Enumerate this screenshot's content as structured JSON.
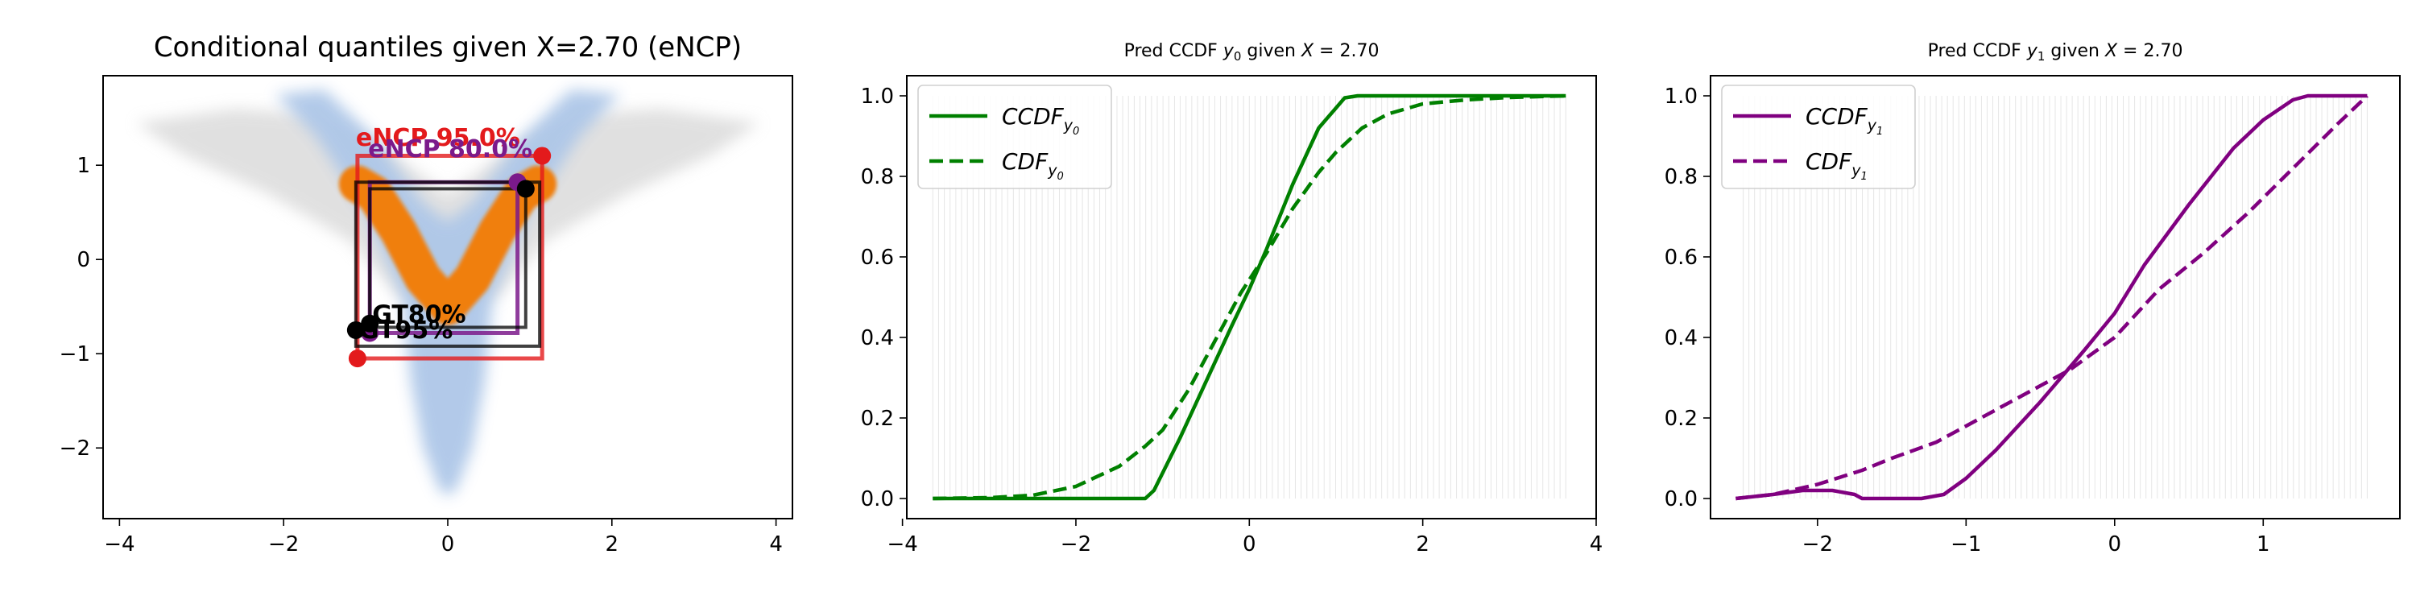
{
  "chart_data": [
    {
      "type": "scatter",
      "title": "Conditional quantiles given X=2.70 (eNCP)",
      "xlabel": "",
      "ylabel": "",
      "xlim": [
        -4.2,
        4.2
      ],
      "ylim": [
        -2.75,
        1.95
      ],
      "xticks": [
        -4,
        -2,
        0,
        2,
        4
      ],
      "yticks": [
        -2,
        -1,
        0,
        1
      ],
      "grid": false,
      "colors": {
        "cloud_grey": "#c8c8c8",
        "cloud_blue": "#aec7e8",
        "conditional": "#f07f0e",
        "encp95": "#e31a1c",
        "encp80": "#7b1a8b",
        "gt": "#000000"
      },
      "conditional_sample_curve": {
        "x": [
          -1.1,
          -0.9,
          -0.6,
          -0.3,
          0.0,
          0.3,
          0.6,
          0.9,
          1.1
        ],
        "y": [
          0.8,
          0.7,
          0.3,
          -0.2,
          -0.5,
          -0.2,
          0.3,
          0.7,
          0.8
        ]
      },
      "regions": [
        {
          "label": "eNCP 95.0%",
          "x": [
            -1.1,
            1.15
          ],
          "y": [
            -1.05,
            1.1
          ],
          "corners": [
            [
              -1.1,
              -1.05
            ],
            [
              1.15,
              1.1
            ]
          ]
        },
        {
          "label": "eNCP 80.0%",
          "x": [
            -0.95,
            0.85
          ],
          "y": [
            -0.78,
            0.82
          ],
          "corners": [
            [
              -0.95,
              -0.78
            ],
            [
              0.85,
              0.82
            ]
          ]
        },
        {
          "label": "GT95%",
          "x": [
            -1.12,
            1.12
          ],
          "y": [
            -0.92,
            0.82
          ]
        },
        {
          "label": "GT80%",
          "x": [
            -0.95,
            0.95
          ],
          "y": [
            -0.72,
            0.75
          ],
          "corners": [
            [
              -0.95,
              -0.72
            ],
            [
              0.95,
              0.75
            ]
          ]
        }
      ],
      "gt_points": [
        [
          -1.12,
          -0.75
        ],
        [
          -0.95,
          -0.68
        ],
        [
          0.95,
          0.75
        ]
      ],
      "gt_label_stack": [
        "GT95%",
        "GT80%"
      ]
    },
    {
      "type": "line",
      "title": "Pred CCDF y0 given X = 2.70",
      "xlabel": "",
      "ylabel": "",
      "xlim": [
        -3.95,
        4.0
      ],
      "ylim": [
        -0.05,
        1.05
      ],
      "xticks": [
        -4,
        -2,
        0,
        2,
        4
      ],
      "yticks": [
        0.0,
        0.2,
        0.4,
        0.6,
        0.8,
        1.0
      ],
      "legend_position": "top-left",
      "grid": false,
      "color": "#008000",
      "vertical_lines_range": [
        -3.65,
        3.65
      ],
      "series": [
        {
          "name": "CCDF_y0",
          "style": "solid",
          "x": [
            -3.65,
            -1.3,
            -1.2,
            -1.1,
            -0.8,
            -0.5,
            -0.2,
            0.0,
            0.2,
            0.5,
            0.8,
            1.1,
            1.25,
            1.35,
            1.5,
            2.0,
            3.65
          ],
          "y": [
            0.0,
            0.0,
            0.0,
            0.02,
            0.15,
            0.29,
            0.43,
            0.52,
            0.62,
            0.78,
            0.92,
            0.995,
            1.0,
            1.0,
            1.0,
            1.0,
            1.0
          ]
        },
        {
          "name": "CDF_y0",
          "style": "dashed",
          "x": [
            -3.65,
            -3.0,
            -2.5,
            -2.0,
            -1.5,
            -1.2,
            -1.0,
            -0.7,
            -0.4,
            -0.1,
            0.2,
            0.5,
            0.8,
            1.0,
            1.3,
            1.6,
            2.0,
            2.5,
            3.0,
            3.65
          ],
          "y": [
            0.0,
            0.002,
            0.008,
            0.03,
            0.08,
            0.13,
            0.17,
            0.27,
            0.39,
            0.51,
            0.61,
            0.72,
            0.81,
            0.86,
            0.92,
            0.955,
            0.98,
            0.99,
            0.996,
            1.0
          ]
        }
      ]
    },
    {
      "type": "line",
      "title": "Pred CCDF y1 given X = 2.70",
      "xlabel": "",
      "ylabel": "",
      "xlim": [
        -2.72,
        1.92
      ],
      "ylim": [
        -0.05,
        1.05
      ],
      "xticks": [
        -2,
        -1,
        0,
        1
      ],
      "yticks": [
        0.0,
        0.2,
        0.4,
        0.6,
        0.8,
        1.0
      ],
      "legend_position": "top-left",
      "grid": false,
      "color": "#800080",
      "vertical_lines_range": [
        -2.5,
        1.7
      ],
      "series": [
        {
          "name": "CCDF_y1",
          "style": "solid",
          "x": [
            -2.55,
            -2.3,
            -2.1,
            -1.9,
            -1.75,
            -1.7,
            -1.5,
            -1.3,
            -1.15,
            -1.0,
            -0.8,
            -0.5,
            -0.2,
            0.0,
            0.2,
            0.5,
            0.8,
            1.0,
            1.2,
            1.3,
            1.5,
            1.7
          ],
          "y": [
            0.0,
            0.01,
            0.02,
            0.02,
            0.01,
            0.0,
            0.0,
            0.0,
            0.01,
            0.05,
            0.12,
            0.24,
            0.37,
            0.46,
            0.58,
            0.73,
            0.87,
            0.94,
            0.99,
            1.0,
            1.0,
            1.0
          ]
        },
        {
          "name": "CDF_y1",
          "style": "dashed",
          "x": [
            -2.55,
            -2.3,
            -2.0,
            -1.7,
            -1.5,
            -1.2,
            -0.9,
            -0.6,
            -0.3,
            0.0,
            0.3,
            0.6,
            0.9,
            1.2,
            1.5,
            1.7
          ],
          "y": [
            0.0,
            0.01,
            0.035,
            0.07,
            0.1,
            0.14,
            0.2,
            0.26,
            0.32,
            0.4,
            0.52,
            0.61,
            0.71,
            0.82,
            0.93,
            1.0
          ]
        }
      ]
    }
  ]
}
